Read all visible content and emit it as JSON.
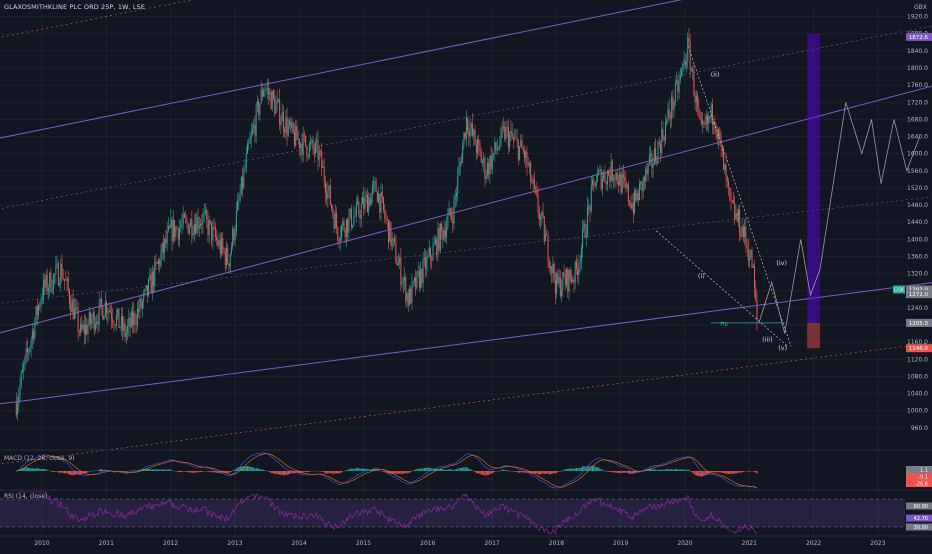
{
  "header": {
    "symbol": "GLAXOSMITHKLINE PLC ORD 25P, 1W, LSE",
    "currency": "GBX"
  },
  "macd_label": "MACD (12, 26, close, 9)",
  "rsi_label": "RSI (14, close)",
  "colors": {
    "background": "#131722",
    "up": "#26a69a",
    "down": "#ef5350",
    "channel": "#7e57c2",
    "rsi": "#9c27b0",
    "forecast": "#9598a1"
  },
  "chart_data": {
    "type": "candlestick",
    "x_ticks": [
      "2010",
      "2011",
      "2012",
      "2013",
      "2014",
      "2015",
      "2016",
      "2017",
      "2018",
      "2019",
      "2020",
      "2021",
      "2022",
      "2023"
    ],
    "y_ticks": [
      "1920.0",
      "1880.0",
      "1840.0",
      "1800.0",
      "1760.0",
      "1720.0",
      "1680.0",
      "1640.0",
      "1600.0",
      "1560.0",
      "1520.0",
      "1480.0",
      "1440.0",
      "1400.0",
      "1360.0",
      "1320.0",
      "1280.0",
      "1240.0",
      "1200.0",
      "1160.0",
      "1120.0",
      "1080.0",
      "1040.0",
      "1000.0",
      "960.0"
    ],
    "ylim": [
      920,
      1940
    ],
    "price_markers": [
      {
        "value": 1872.6,
        "label": "1872.6",
        "color": "#7e57c2"
      },
      {
        "value": 1283,
        "label": "1283.0",
        "color": "#787b86"
      },
      {
        "value": 1272,
        "label": "1272.0",
        "color": "#787b86"
      },
      {
        "value": 1205,
        "label": "1205.0",
        "color": "#787b86"
      },
      {
        "value": 1146,
        "label": "1146.0",
        "color": "#ef5350"
      }
    ],
    "badge_text": "GSK",
    "anchors": [
      {
        "year": 2009.6,
        "value": 1020
      },
      {
        "year": 2010.0,
        "value": 1280
      },
      {
        "year": 2010.3,
        "value": 1330
      },
      {
        "year": 2010.6,
        "value": 1180
      },
      {
        "year": 2011.0,
        "value": 1250
      },
      {
        "year": 2011.3,
        "value": 1180
      },
      {
        "year": 2011.6,
        "value": 1260
      },
      {
        "year": 2012.0,
        "value": 1420
      },
      {
        "year": 2012.5,
        "value": 1450
      },
      {
        "year": 2012.9,
        "value": 1350
      },
      {
        "year": 2013.2,
        "value": 1600
      },
      {
        "year": 2013.45,
        "value": 1760
      },
      {
        "year": 2013.9,
        "value": 1640
      },
      {
        "year": 2014.3,
        "value": 1600
      },
      {
        "year": 2014.6,
        "value": 1420
      },
      {
        "year": 2014.9,
        "value": 1460
      },
      {
        "year": 2015.2,
        "value": 1520
      },
      {
        "year": 2015.7,
        "value": 1260
      },
      {
        "year": 2016.0,
        "value": 1350
      },
      {
        "year": 2016.4,
        "value": 1470
      },
      {
        "year": 2016.6,
        "value": 1680
      },
      {
        "year": 2016.9,
        "value": 1560
      },
      {
        "year": 2017.2,
        "value": 1650
      },
      {
        "year": 2017.5,
        "value": 1600
      },
      {
        "year": 2017.8,
        "value": 1420
      },
      {
        "year": 2018.0,
        "value": 1290
      },
      {
        "year": 2018.3,
        "value": 1320
      },
      {
        "year": 2018.6,
        "value": 1540
      },
      {
        "year": 2018.9,
        "value": 1560
      },
      {
        "year": 2019.2,
        "value": 1480
      },
      {
        "year": 2019.6,
        "value": 1620
      },
      {
        "year": 2019.9,
        "value": 1760
      },
      {
        "year": 2020.05,
        "value": 1850
      },
      {
        "year": 2020.25,
        "value": 1640
      },
      {
        "year": 2020.45,
        "value": 1700
      },
      {
        "year": 2020.7,
        "value": 1480
      },
      {
        "year": 2020.9,
        "value": 1420
      },
      {
        "year": 2021.05,
        "value": 1340
      },
      {
        "year": 2021.12,
        "value": 1205
      }
    ],
    "wave_labels": [
      {
        "text": "(i)",
        "year": 2020.2,
        "value": 1310
      },
      {
        "text": "(ii)",
        "year": 2020.4,
        "value": 1780
      },
      {
        "text": "(iii)",
        "year": 2021.2,
        "value": 1162
      },
      {
        "text": "(iv)",
        "year": 2021.42,
        "value": 1340
      },
      {
        "text": "(v)",
        "year": 2021.45,
        "value": 1142
      }
    ],
    "fib_label": "Fib",
    "forecast_path": [
      {
        "year": 2021.15,
        "value": 1205
      },
      {
        "year": 2021.35,
        "value": 1300
      },
      {
        "year": 2021.55,
        "value": 1180
      },
      {
        "year": 2021.8,
        "value": 1400
      },
      {
        "year": 2021.95,
        "value": 1270
      },
      {
        "year": 2022.1,
        "value": 1330
      },
      {
        "year": 2022.5,
        "value": 1720
      },
      {
        "year": 2022.75,
        "value": 1600
      },
      {
        "year": 2022.9,
        "value": 1680
      },
      {
        "year": 2023.05,
        "value": 1530
      },
      {
        "year": 2023.25,
        "value": 1680
      },
      {
        "year": 2023.45,
        "value": 1560
      },
      {
        "year": 2023.65,
        "value": 1640
      }
    ],
    "target_box": {
      "year_start": 2021.9,
      "year_end": 2022.1,
      "value_top": 1880,
      "value_bottom": 1205,
      "stop_bottom": 1146
    },
    "macd": {
      "badges": [
        "1.1",
        "-9.1",
        "-26.6"
      ],
      "ylim": [
        -40,
        40
      ]
    },
    "rsi": {
      "badges": [
        "60.00",
        "42.70",
        "30.00"
      ],
      "upper": 70,
      "lower": 30,
      "ylim": [
        20,
        80
      ]
    }
  }
}
